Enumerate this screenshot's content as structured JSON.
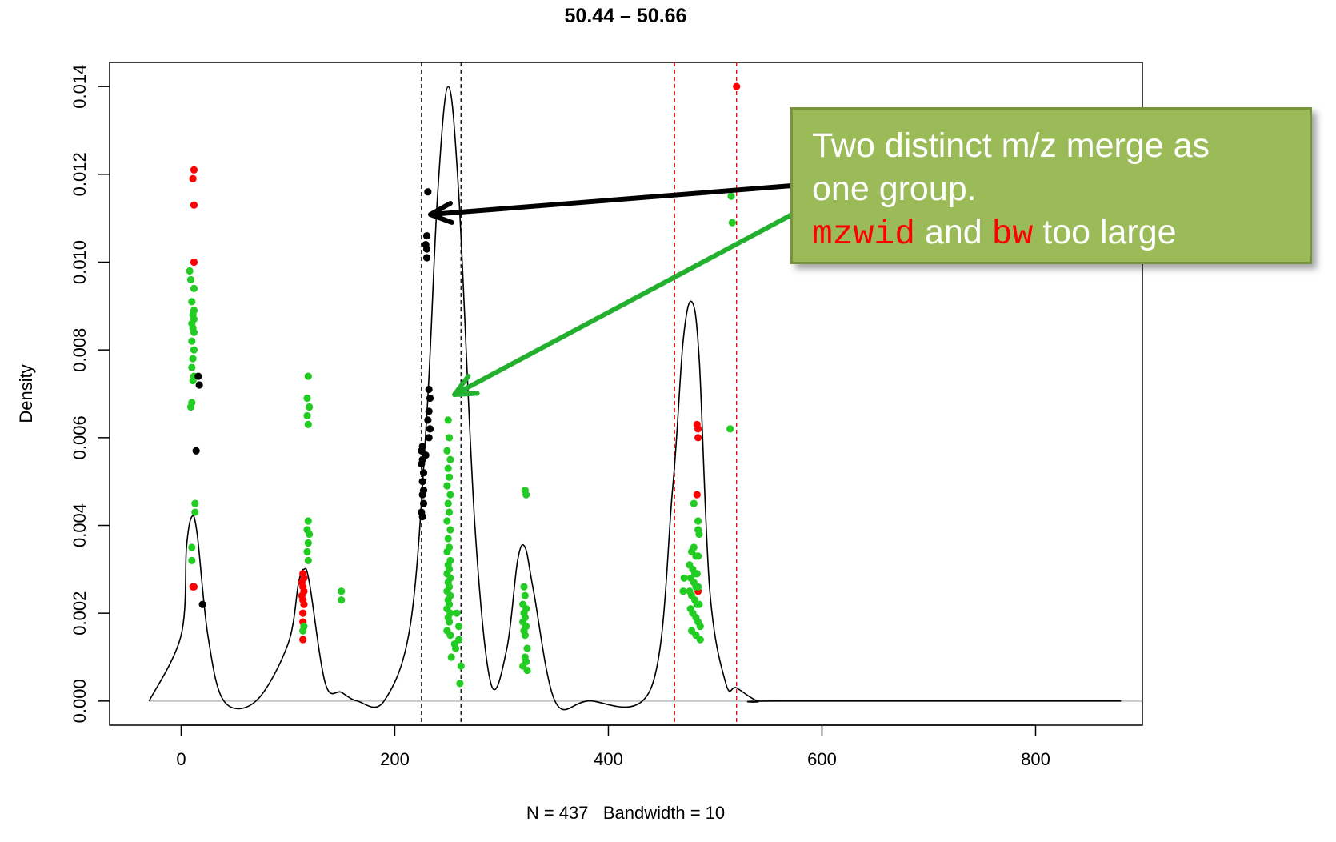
{
  "chart_data": {
    "type": "scatter",
    "title": "50.44 – 50.66",
    "xlabel": "N = 437   Bandwidth = 10",
    "ylabel": "Density",
    "xlim": [
      -67,
      900
    ],
    "ylim": [
      -0.00055,
      0.01455
    ],
    "x_ticks": [
      0,
      200,
      400,
      600,
      800
    ],
    "x_tick_labels": [
      "0",
      "200",
      "400",
      "600",
      "800"
    ],
    "y_ticks": [
      0,
      0.002,
      0.004,
      0.006,
      0.008,
      0.01,
      0.012,
      0.014
    ],
    "y_tick_labels": [
      "0.000",
      "0.002",
      "0.004",
      "0.006",
      "0.008",
      "0.010",
      "0.012",
      "0.014"
    ],
    "grid": false,
    "density_curve": {
      "color": "#000000",
      "x": [
        -30,
        0,
        5,
        10,
        15,
        25,
        40,
        70,
        100,
        110,
        115,
        120,
        135,
        150,
        165,
        190,
        215,
        230,
        240,
        250,
        260,
        275,
        290,
        305,
        315,
        322,
        330,
        350,
        380,
        440,
        460,
        470,
        478,
        485,
        495,
        510,
        520,
        540,
        560,
        880
      ],
      "y": [
        0,
        0.0015,
        0.0035,
        0.0042,
        0.0038,
        0.0015,
        0,
        0,
        0.0013,
        0.0027,
        0.003,
        0.0027,
        0.0004,
        0.0002,
        0,
        0,
        0.0018,
        0.0065,
        0.0115,
        0.014,
        0.0115,
        0.004,
        0.0004,
        0.0012,
        0.0032,
        0.0035,
        0.0025,
        0,
        0,
        0.0003,
        0.0048,
        0.0082,
        0.0091,
        0.0078,
        0.0025,
        0.0004,
        0.0003,
        0,
        0,
        0
      ]
    },
    "baseline": {
      "y": 0,
      "x": [
        -30,
        905
      ],
      "color": "#bbbbbb"
    },
    "reference_lines": [
      {
        "x": 225,
        "color": "#000000",
        "style": "dashed"
      },
      {
        "x": 262,
        "color": "#000000",
        "style": "dashed"
      },
      {
        "x": 462,
        "color": "#ff0000",
        "style": "dashed"
      },
      {
        "x": 520,
        "color": "#ff0000",
        "style": "dashed"
      }
    ],
    "series": [
      {
        "color": "#ff0000",
        "points": [
          [
            12,
            0.0121
          ],
          [
            11,
            0.0119
          ],
          [
            12,
            0.0113
          ],
          [
            12,
            0.01
          ],
          [
            11,
            0.0026
          ],
          [
            12,
            0.0026
          ],
          [
            114,
            0.0029
          ],
          [
            115,
            0.0028
          ],
          [
            113,
            0.0027
          ],
          [
            114,
            0.0026
          ],
          [
            115,
            0.0025
          ],
          [
            113,
            0.0024
          ],
          [
            114,
            0.0023
          ],
          [
            115,
            0.0022
          ],
          [
            114,
            0.002
          ],
          [
            114,
            0.0018
          ],
          [
            114,
            0.0014
          ],
          [
            520,
            0.014
          ],
          [
            483,
            0.0063
          ],
          [
            484,
            0.0062
          ],
          [
            484,
            0.006
          ],
          [
            483,
            0.0047
          ],
          [
            484,
            0.0025
          ]
        ]
      },
      {
        "color": "#22cc22",
        "points": [
          [
            8,
            0.0098
          ],
          [
            9,
            0.0096
          ],
          [
            12,
            0.0094
          ],
          [
            10,
            0.0091
          ],
          [
            12,
            0.0089
          ],
          [
            11,
            0.0088
          ],
          [
            12,
            0.0087
          ],
          [
            10,
            0.0086
          ],
          [
            11,
            0.0085
          ],
          [
            12,
            0.0084
          ],
          [
            10,
            0.0082
          ],
          [
            12,
            0.008
          ],
          [
            11,
            0.0078
          ],
          [
            10,
            0.0076
          ],
          [
            12,
            0.0074
          ],
          [
            11,
            0.0073
          ],
          [
            10,
            0.0068
          ],
          [
            9,
            0.0067
          ],
          [
            13,
            0.0045
          ],
          [
            13,
            0.0043
          ],
          [
            10,
            0.0035
          ],
          [
            10,
            0.0032
          ],
          [
            119,
            0.0074
          ],
          [
            118,
            0.0069
          ],
          [
            120,
            0.0067
          ],
          [
            118,
            0.0065
          ],
          [
            119,
            0.0063
          ],
          [
            119,
            0.0041
          ],
          [
            118,
            0.0039
          ],
          [
            120,
            0.0038
          ],
          [
            119,
            0.0036
          ],
          [
            118,
            0.0034
          ],
          [
            119,
            0.0032
          ],
          [
            115,
            0.0017
          ],
          [
            114,
            0.0016
          ],
          [
            150,
            0.0025
          ],
          [
            150,
            0.0023
          ],
          [
            250,
            0.0064
          ],
          [
            251,
            0.006
          ],
          [
            249,
            0.0057
          ],
          [
            252,
            0.0055
          ],
          [
            250,
            0.0053
          ],
          [
            251,
            0.0051
          ],
          [
            249,
            0.0049
          ],
          [
            252,
            0.0047
          ],
          [
            250,
            0.0045
          ],
          [
            251,
            0.0043
          ],
          [
            249,
            0.0041
          ],
          [
            252,
            0.0039
          ],
          [
            250,
            0.0037
          ],
          [
            251,
            0.0035
          ],
          [
            249,
            0.0034
          ],
          [
            252,
            0.0032
          ],
          [
            250,
            0.0031
          ],
          [
            251,
            0.003
          ],
          [
            249,
            0.0029
          ],
          [
            252,
            0.0028
          ],
          [
            250,
            0.0027
          ],
          [
            251,
            0.0026
          ],
          [
            249,
            0.0025
          ],
          [
            252,
            0.0024
          ],
          [
            250,
            0.0023
          ],
          [
            251,
            0.0022
          ],
          [
            249,
            0.0021
          ],
          [
            252,
            0.002
          ],
          [
            250,
            0.0019
          ],
          [
            251,
            0.0018
          ],
          [
            249,
            0.0016
          ],
          [
            252,
            0.0015
          ],
          [
            256,
            0.0013
          ],
          [
            257,
            0.0012
          ],
          [
            260,
            0.0014
          ],
          [
            253,
            0.001
          ],
          [
            258,
            0.002
          ],
          [
            260,
            0.0017
          ],
          [
            262,
            0.0008
          ],
          [
            261,
            0.0004
          ],
          [
            322,
            0.0048
          ],
          [
            323,
            0.0047
          ],
          [
            321,
            0.0026
          ],
          [
            322,
            0.0024
          ],
          [
            320,
            0.0022
          ],
          [
            323,
            0.0021
          ],
          [
            321,
            0.002
          ],
          [
            322,
            0.0019
          ],
          [
            320,
            0.0018
          ],
          [
            323,
            0.0017
          ],
          [
            321,
            0.0016
          ],
          [
            322,
            0.0015
          ],
          [
            324,
            0.0012
          ],
          [
            322,
            0.001
          ],
          [
            323,
            0.0009
          ],
          [
            320,
            0.0008
          ],
          [
            324,
            0.0007
          ],
          [
            515,
            0.0115
          ],
          [
            516,
            0.0109
          ],
          [
            514,
            0.0062
          ],
          [
            480,
            0.0045
          ],
          [
            484,
            0.0041
          ],
          [
            484,
            0.0039
          ],
          [
            485,
            0.0038
          ],
          [
            480,
            0.0035
          ],
          [
            478,
            0.0034
          ],
          [
            482,
            0.0033
          ],
          [
            484,
            0.0033
          ],
          [
            476,
            0.0031
          ],
          [
            479,
            0.003
          ],
          [
            481,
            0.0029
          ],
          [
            483,
            0.0029
          ],
          [
            477,
            0.0028
          ],
          [
            480,
            0.0027
          ],
          [
            482,
            0.0026
          ],
          [
            484,
            0.0026
          ],
          [
            476,
            0.0025
          ],
          [
            478,
            0.0024
          ],
          [
            481,
            0.0023
          ],
          [
            483,
            0.0022
          ],
          [
            485,
            0.0022
          ],
          [
            477,
            0.0021
          ],
          [
            479,
            0.002
          ],
          [
            482,
            0.0019
          ],
          [
            484,
            0.0018
          ],
          [
            486,
            0.0017
          ],
          [
            478,
            0.0016
          ],
          [
            482,
            0.0015
          ],
          [
            486,
            0.0014
          ],
          [
            470,
            0.0025
          ],
          [
            471,
            0.0028
          ]
        ]
      },
      {
        "color": "#000000",
        "points": [
          [
            16,
            0.0074
          ],
          [
            17,
            0.0072
          ],
          [
            14,
            0.0057
          ],
          [
            20,
            0.0022
          ],
          [
            231,
            0.0116
          ],
          [
            230,
            0.0106
          ],
          [
            229,
            0.0104
          ],
          [
            230,
            0.0103
          ],
          [
            230,
            0.0101
          ],
          [
            232,
            0.0071
          ],
          [
            233,
            0.0069
          ],
          [
            232,
            0.0066
          ],
          [
            231,
            0.0064
          ],
          [
            233,
            0.0062
          ],
          [
            232,
            0.006
          ],
          [
            226,
            0.0058
          ],
          [
            225,
            0.0057
          ],
          [
            229,
            0.0056
          ],
          [
            226,
            0.0055
          ],
          [
            225,
            0.0054
          ],
          [
            227,
            0.0052
          ],
          [
            226,
            0.005
          ],
          [
            227,
            0.0048
          ],
          [
            226,
            0.0047
          ],
          [
            227,
            0.0045
          ],
          [
            225,
            0.0043
          ],
          [
            226,
            0.0042
          ]
        ]
      }
    ]
  },
  "callout": {
    "line1": "Two distinct m/z merge as",
    "line2": "one group.",
    "code1": "mzwid",
    "and": " and ",
    "code2": "bw",
    "suffix": " too large",
    "colors": {
      "fill": "#9bbb59",
      "border": "#77933c",
      "text": "#ffffff",
      "code": "#ff0000"
    }
  },
  "arrows": [
    {
      "color": "#000000",
      "points_to": "black merged group"
    },
    {
      "color": "#22b02e",
      "points_to": "green group"
    }
  ]
}
